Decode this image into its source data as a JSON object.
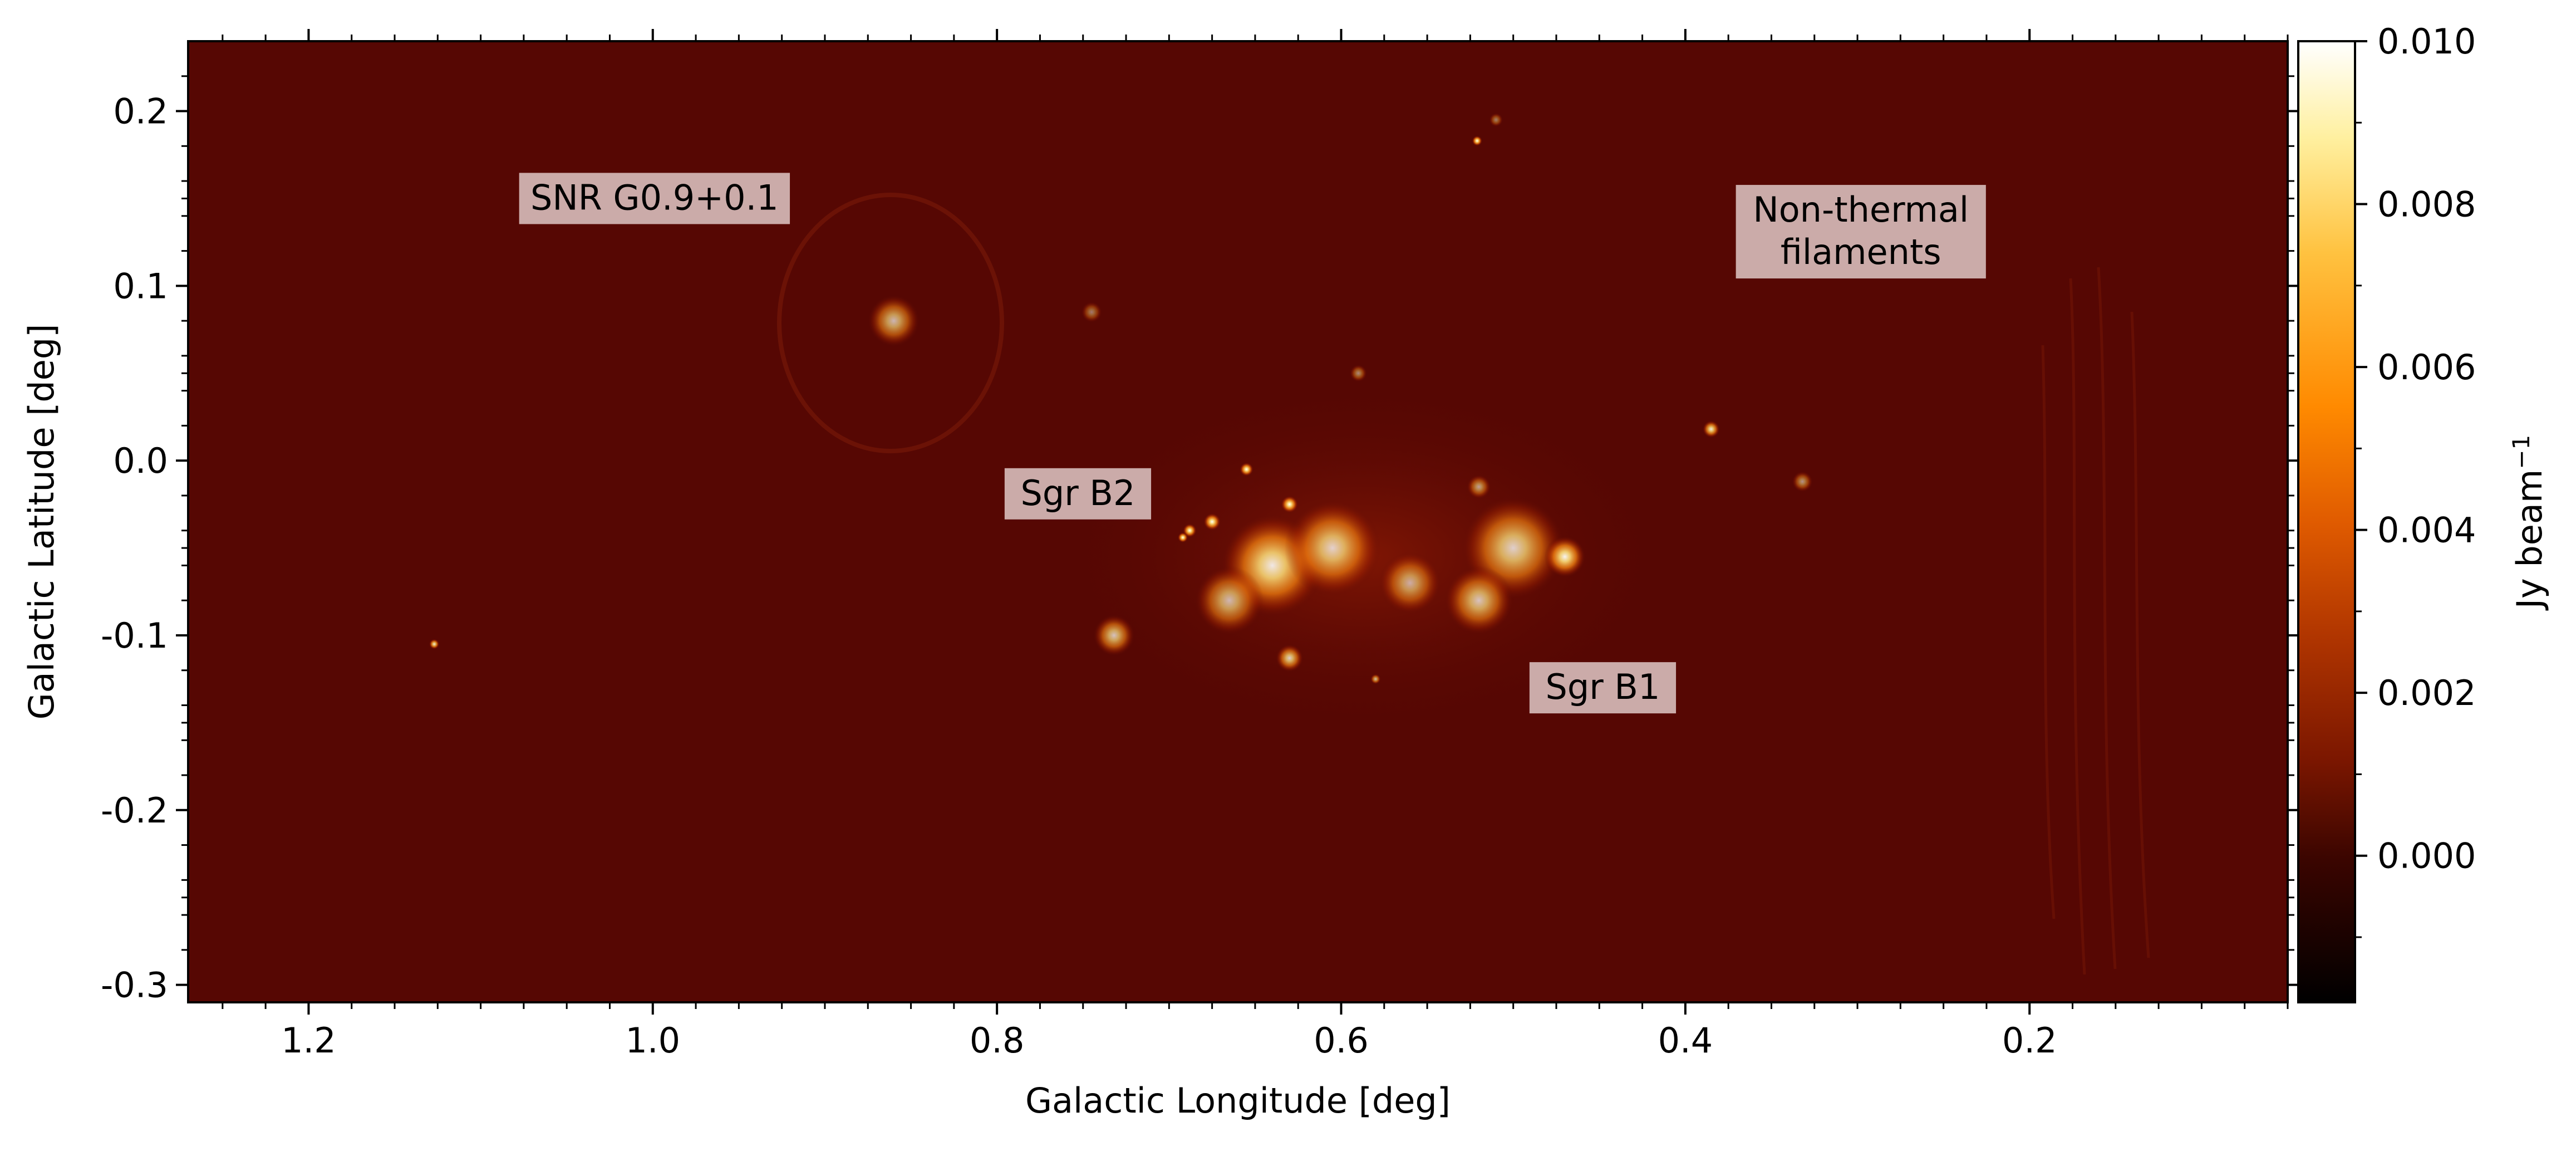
{
  "figure": {
    "xlabel": "Galactic Longitude [deg]",
    "ylabel": "Galactic Latitude [deg]",
    "xaxis": {
      "range": [
        1.27,
        0.05
      ],
      "ticks": [
        1.2,
        1.0,
        0.8,
        0.6,
        0.4,
        0.2
      ],
      "tick_labels": [
        "1.2",
        "1.0",
        "0.8",
        "0.6",
        "0.4",
        "0.2"
      ]
    },
    "yaxis": {
      "range": [
        -0.31,
        0.24
      ],
      "ticks": [
        0.2,
        0.1,
        0.0,
        -0.1,
        -0.2,
        -0.3
      ],
      "tick_labels": [
        "0.2",
        "0.1",
        "0.0",
        "-0.1",
        "-0.2",
        "-0.3"
      ]
    },
    "colorbar": {
      "label_main": "Jy beam",
      "label_sup": "−1",
      "range": [
        -0.0018,
        0.01
      ],
      "ticks": [
        0.0,
        0.002,
        0.004,
        0.006,
        0.008,
        0.01
      ],
      "tick_labels": [
        "0.000",
        "0.002",
        "0.004",
        "0.006",
        "0.008",
        "0.010"
      ],
      "colormap": [
        "#000000",
        "#5a0a00",
        "#9c2b00",
        "#ff7f00",
        "#ffd060",
        "#ffffff"
      ]
    },
    "background_color": "#560703",
    "annotations": [
      {
        "lines": [
          "SNR G0.9+0.1"
        ],
        "l": 0.999,
        "b": 0.15
      },
      {
        "lines": [
          "Non-thermal",
          "filaments"
        ],
        "l": 0.298,
        "b": 0.131
      },
      {
        "lines": [
          "Sgr B2"
        ],
        "l": 0.753,
        "b": -0.019
      },
      {
        "lines": [
          "Sgr B1"
        ],
        "l": 0.448,
        "b": -0.13
      }
    ],
    "sources": [
      {
        "l": 0.86,
        "b": 0.08,
        "r": 0.015,
        "intensity": 0.7
      },
      {
        "l": 0.385,
        "b": 0.018,
        "r": 0.005,
        "intensity": 0.9
      },
      {
        "l": 0.732,
        "b": -0.1,
        "r": 0.012,
        "intensity": 0.75
      },
      {
        "l": 1.127,
        "b": -0.105,
        "r": 0.003,
        "intensity": 0.9
      },
      {
        "l": 0.521,
        "b": 0.183,
        "r": 0.003,
        "intensity": 1.0
      },
      {
        "l": 0.332,
        "b": -0.012,
        "r": 0.006,
        "intensity": 0.55
      },
      {
        "l": 0.655,
        "b": -0.005,
        "r": 0.004,
        "intensity": 1.0
      },
      {
        "l": 0.63,
        "b": -0.025,
        "r": 0.005,
        "intensity": 1.0
      },
      {
        "l": 0.675,
        "b": -0.035,
        "r": 0.005,
        "intensity": 1.0
      },
      {
        "l": 0.688,
        "b": -0.04,
        "r": 0.004,
        "intensity": 1.0
      },
      {
        "l": 0.692,
        "b": -0.044,
        "r": 0.003,
        "intensity": 1.0
      },
      {
        "l": 0.64,
        "b": -0.06,
        "r": 0.03,
        "intensity": 0.9
      },
      {
        "l": 0.605,
        "b": -0.05,
        "r": 0.028,
        "intensity": 0.8
      },
      {
        "l": 0.5,
        "b": -0.05,
        "r": 0.03,
        "intensity": 0.8
      },
      {
        "l": 0.47,
        "b": -0.055,
        "r": 0.012,
        "intensity": 0.95
      },
      {
        "l": 0.52,
        "b": -0.08,
        "r": 0.02,
        "intensity": 0.75
      },
      {
        "l": 0.56,
        "b": -0.07,
        "r": 0.018,
        "intensity": 0.65
      },
      {
        "l": 0.665,
        "b": -0.08,
        "r": 0.02,
        "intensity": 0.7
      },
      {
        "l": 0.63,
        "b": -0.113,
        "r": 0.008,
        "intensity": 0.8
      },
      {
        "l": 0.59,
        "b": 0.05,
        "r": 0.005,
        "intensity": 0.5
      },
      {
        "l": 0.745,
        "b": 0.085,
        "r": 0.006,
        "intensity": 0.45
      },
      {
        "l": 0.51,
        "b": 0.195,
        "r": 0.004,
        "intensity": 0.45
      },
      {
        "l": 0.52,
        "b": -0.015,
        "r": 0.007,
        "intensity": 0.6
      },
      {
        "l": 0.58,
        "b": -0.125,
        "r": 0.003,
        "intensity": 0.7
      }
    ]
  }
}
